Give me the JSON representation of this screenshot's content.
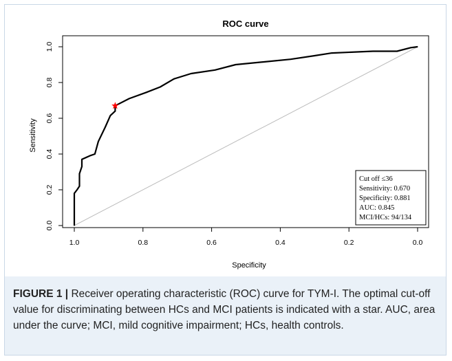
{
  "chart_data": {
    "type": "line",
    "title": "ROC curve",
    "xlabel": "Specificity",
    "ylabel": "Sensitivity",
    "x_reversed": true,
    "xlim": [
      1.0,
      0.0
    ],
    "ylim": [
      0.0,
      1.0
    ],
    "x_ticks": [
      "1.0",
      "0.8",
      "0.6",
      "0.4",
      "0.2",
      "0.0"
    ],
    "y_ticks": [
      "0.0",
      "0.2",
      "0.4",
      "0.6",
      "0.8",
      "1.0"
    ],
    "grid": false,
    "series": [
      {
        "color": "#000000",
        "points": [
          {
            "specificity": 1.0,
            "sensitivity": 0.0
          },
          {
            "specificity": 1.0,
            "sensitivity": 0.18
          },
          {
            "specificity": 0.992,
            "sensitivity": 0.2
          },
          {
            "specificity": 0.985,
            "sensitivity": 0.22
          },
          {
            "specificity": 0.985,
            "sensitivity": 0.29
          },
          {
            "specificity": 0.978,
            "sensitivity": 0.33
          },
          {
            "specificity": 0.978,
            "sensitivity": 0.37
          },
          {
            "specificity": 0.955,
            "sensitivity": 0.39
          },
          {
            "specificity": 0.94,
            "sensitivity": 0.4
          },
          {
            "specificity": 0.93,
            "sensitivity": 0.47
          },
          {
            "specificity": 0.91,
            "sensitivity": 0.55
          },
          {
            "specificity": 0.895,
            "sensitivity": 0.615
          },
          {
            "specificity": 0.881,
            "sensitivity": 0.64
          },
          {
            "specificity": 0.881,
            "sensitivity": 0.67
          },
          {
            "specificity": 0.84,
            "sensitivity": 0.71
          },
          {
            "specificity": 0.79,
            "sensitivity": 0.745
          },
          {
            "specificity": 0.75,
            "sensitivity": 0.775
          },
          {
            "specificity": 0.71,
            "sensitivity": 0.82
          },
          {
            "specificity": 0.66,
            "sensitivity": 0.85
          },
          {
            "specificity": 0.59,
            "sensitivity": 0.87
          },
          {
            "specificity": 0.53,
            "sensitivity": 0.9
          },
          {
            "specificity": 0.45,
            "sensitivity": 0.915
          },
          {
            "specificity": 0.37,
            "sensitivity": 0.93
          },
          {
            "specificity": 0.3,
            "sensitivity": 0.95
          },
          {
            "specificity": 0.25,
            "sensitivity": 0.965
          },
          {
            "specificity": 0.13,
            "sensitivity": 0.975
          },
          {
            "specificity": 0.06,
            "sensitivity": 0.975
          },
          {
            "specificity": 0.02,
            "sensitivity": 0.995
          },
          {
            "specificity": 0.0,
            "sensitivity": 1.0
          }
        ]
      }
    ],
    "reference_line": {
      "from": [
        1.0,
        0.0
      ],
      "to": [
        0.0,
        1.0
      ],
      "color": "#bbbbbb"
    },
    "optimal_point": {
      "specificity": 0.881,
      "sensitivity": 0.67,
      "color": "#ff0000",
      "marker": "star"
    },
    "legend_box": {
      "position": "bottom-right",
      "lines": [
        "Cut off ≤36",
        "Sensitivity: 0.670",
        "Specificity: 0.881",
        "AUC: 0.845",
        "MCI/HCs: 94/134"
      ]
    }
  },
  "caption": {
    "label": "FIGURE 1 |",
    "text": "Receiver operating characteristic (ROC) curve for TYM-I. The optimal cut-off value for discriminating between HCs and MCI patients is indicated with a star. AUC, area under the curve; MCI, mild cognitive impairment; HCs, health controls."
  },
  "colors": {
    "caption_background": "#eaf1f8",
    "frame_border": "#c9d7e6"
  }
}
